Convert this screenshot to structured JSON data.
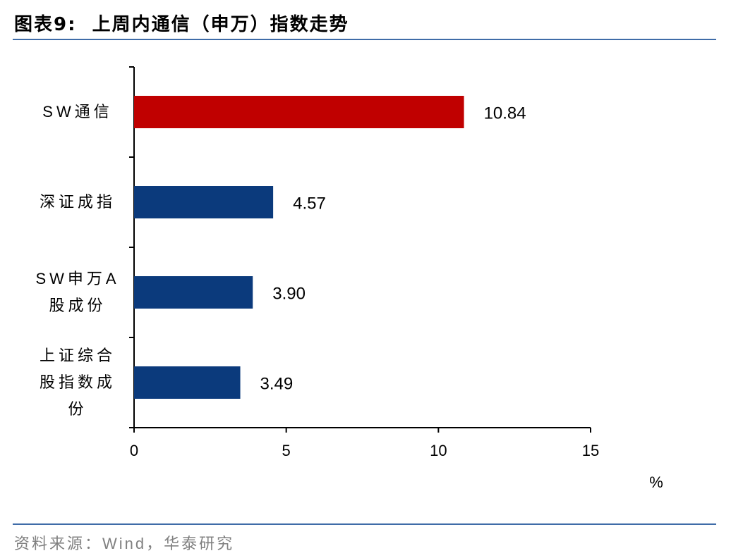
{
  "chart_data": {
    "type": "bar",
    "orientation": "horizontal",
    "title": "图表9:  上周内通信（申万）指数走势",
    "categories": [
      "SW通信",
      "深证成指",
      "SW申万A股成份",
      "上证综合股指数成份"
    ],
    "values": [
      10.84,
      4.57,
      3.9,
      3.49
    ],
    "value_labels": [
      "10.84",
      "4.57",
      "3.90",
      "3.49"
    ],
    "colors": [
      "#c00000",
      "#0b3a7c",
      "#0b3a7c",
      "#0b3a7c"
    ],
    "xlim": [
      0,
      15
    ],
    "xticks": [
      0,
      5,
      10,
      15
    ],
    "x_label": "%",
    "source": "资料来源：Wind，华泰研究"
  }
}
